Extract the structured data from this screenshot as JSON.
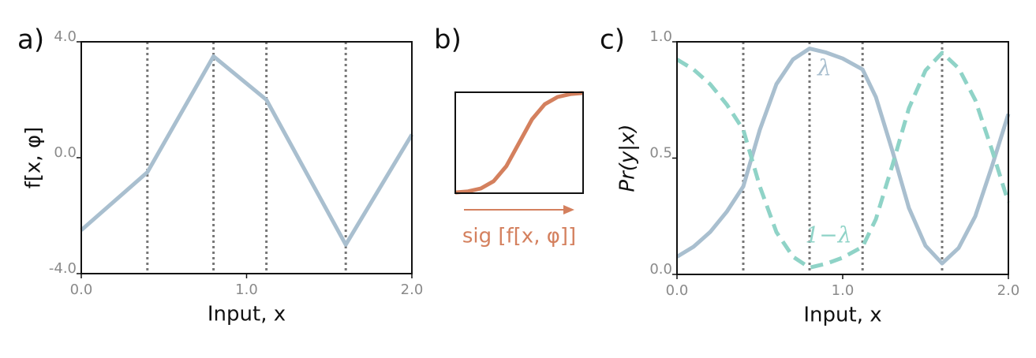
{
  "chart_data": [
    {
      "type": "line",
      "label": "a)",
      "xlabel": "Input, x",
      "ylabel": "f[x, φ]",
      "x": [
        0,
        0.4,
        0.8,
        1.12,
        1.6,
        2.0
      ],
      "values": [
        -2.5,
        -0.5,
        3.5,
        2.0,
        -3.0,
        0.8
      ],
      "color": "#a9bfcf",
      "vlines": [
        0.4,
        0.8,
        1.12,
        1.6
      ],
      "xlim": [
        0,
        2
      ],
      "ylim": [
        -4,
        4
      ],
      "xticks": [
        {
          "value": 0,
          "label": "0.0"
        },
        {
          "value": 1,
          "label": "1.0"
        },
        {
          "value": 2,
          "label": "2.0"
        }
      ],
      "yticks": [
        {
          "value": -4,
          "label": "-4.0"
        },
        {
          "value": 0,
          "label": "0.0"
        },
        {
          "value": 4,
          "label": "4.0"
        }
      ]
    },
    {
      "type": "line",
      "label": "b)",
      "xlabel": "sig [f[x, φ]]",
      "x": [
        -5,
        -4,
        -3,
        -2,
        -1,
        0,
        1,
        2,
        3,
        4,
        5
      ],
      "values": [
        0.007,
        0.018,
        0.047,
        0.119,
        0.269,
        0.5,
        0.731,
        0.881,
        0.953,
        0.982,
        0.993
      ],
      "color": "#d4805e",
      "xlim": [
        -5,
        5
      ],
      "ylim": [
        0,
        1
      ]
    },
    {
      "type": "line",
      "label": "c)",
      "xlabel": "Input, x",
      "ylabel": "Pr(y|x)",
      "x": [
        0,
        0.1,
        0.2,
        0.3,
        0.4,
        0.5,
        0.6,
        0.7,
        0.8,
        0.9,
        1.0,
        1.12,
        1.2,
        1.3,
        1.4,
        1.5,
        1.6,
        1.7,
        1.8,
        1.9,
        2.0
      ],
      "series": [
        {
          "name": "λ",
          "color": "#a9bfcf",
          "values": [
            0.076,
            0.119,
            0.182,
            0.269,
            0.378,
            0.622,
            0.818,
            0.924,
            0.971,
            0.954,
            0.928,
            0.881,
            0.763,
            0.531,
            0.285,
            0.123,
            0.047,
            0.114,
            0.25,
            0.463,
            0.69
          ]
        },
        {
          "name": "1−λ",
          "color": "#8fd3c7",
          "dashed": true,
          "values": [
            0.924,
            0.881,
            0.818,
            0.731,
            0.622,
            0.378,
            0.182,
            0.076,
            0.029,
            0.046,
            0.072,
            0.119,
            0.237,
            0.469,
            0.715,
            0.877,
            0.953,
            0.886,
            0.75,
            0.537,
            0.31
          ]
        }
      ],
      "vlines": [
        0.4,
        0.8,
        1.12,
        1.6
      ],
      "xlim": [
        0,
        2
      ],
      "ylim": [
        0,
        1
      ],
      "xticks": [
        {
          "value": 0,
          "label": "0.0"
        },
        {
          "value": 1,
          "label": "1.0"
        },
        {
          "value": 2,
          "label": "2.0"
        }
      ],
      "yticks": [
        {
          "value": 0,
          "label": "0.0"
        },
        {
          "value": 0.5,
          "label": "0.5"
        },
        {
          "value": 1,
          "label": "1.0"
        }
      ]
    }
  ]
}
